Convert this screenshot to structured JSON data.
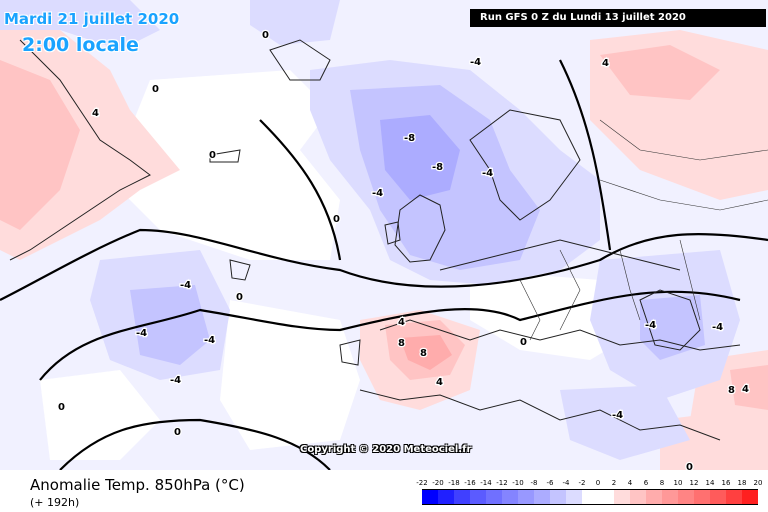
{
  "header": {
    "date": "Mardi 21 juillet 2020",
    "time": "2:00 locale",
    "run": "Run GFS 0 Z du Lundi 13 juillet 2020"
  },
  "copyright": "Copyright © 2020 Meteociel.fr",
  "footer": {
    "field": "Anomalie Temp. 850hPa (°C)",
    "lead": "(+ 192h)"
  },
  "legend": {
    "labels": [
      "-22",
      "-20",
      "-18",
      "-16",
      "-14",
      "-12",
      "-10",
      "-8",
      "-6",
      "-4",
      "-2",
      "0",
      "2",
      "4",
      "6",
      "8",
      "10",
      "12",
      "14",
      "16",
      "18",
      "20"
    ],
    "colors": [
      "#0000ff",
      "#2020ff",
      "#4040ff",
      "#5b5bff",
      "#7070ff",
      "#8484ff",
      "#9898ff",
      "#acacff",
      "#c4c4ff",
      "#dcdcff",
      "#ffffff",
      "#ffffff",
      "#ffdcdc",
      "#ffc4c4",
      "#ffacac",
      "#ff9898",
      "#ff8484",
      "#ff7070",
      "#ff5b5b",
      "#ff4040",
      "#ff2020"
    ]
  },
  "contour_labels": [
    "0",
    "-4",
    "-8",
    "4",
    "8"
  ],
  "colors": {
    "background": "#f1f1ff",
    "cold_light": "#dcdcff",
    "cold_mid": "#c4c4ff",
    "cold_strong": "#acacff",
    "warm_light": "#ffdcdc",
    "warm_mid": "#ffc4c4",
    "warm_strong": "#ffacac",
    "title_blue": "#1aa3ff"
  }
}
